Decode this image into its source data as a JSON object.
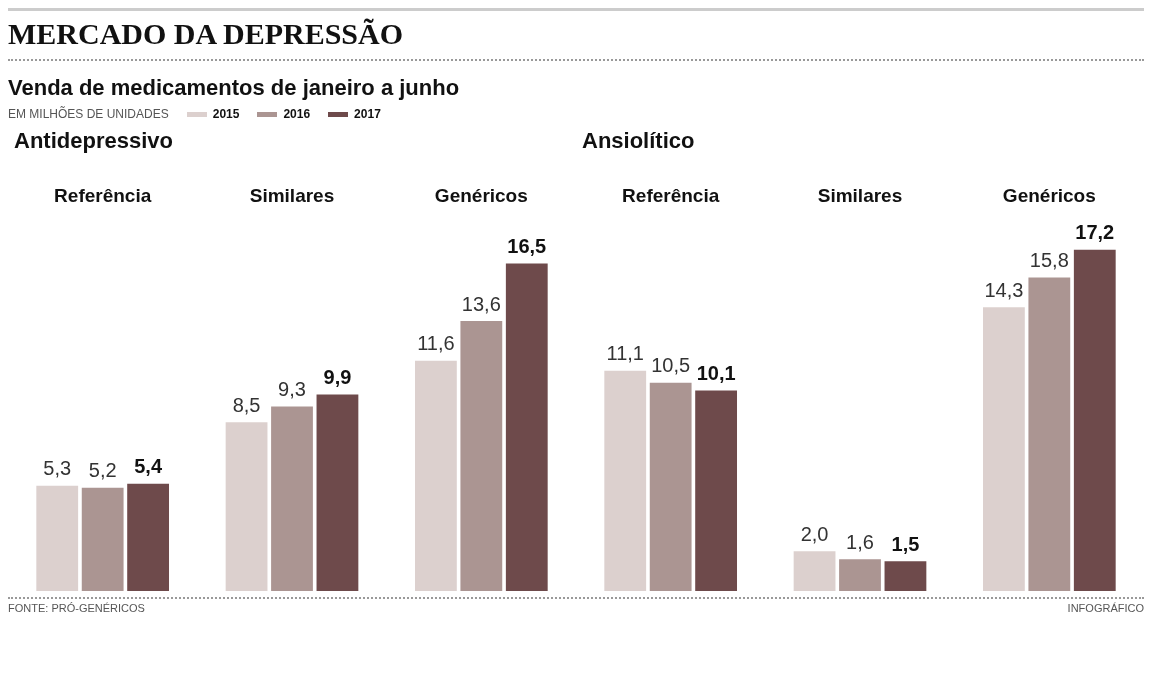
{
  "chart_data": {
    "type": "bar",
    "title": "MERCADO DA DEPRESSÃO",
    "subtitle": "Venda de medicamentos de janeiro a junho",
    "categories": [
      "Referência",
      "Similares",
      "Genéricos",
      "Referência",
      "Similares",
      "Genéricos"
    ],
    "series": [
      {
        "name": "2015",
        "color": "#dcd0ce",
        "values": [
          5.3,
          8.5,
          11.6,
          11.1,
          2.0,
          14.3
        ],
        "value_labels": [
          "5,3",
          "8,5",
          "11,6",
          "11,1",
          "2,0",
          "14,3"
        ]
      },
      {
        "name": "2016",
        "color": "#ab9592",
        "values": [
          5.2,
          9.3,
          13.6,
          10.5,
          1.6,
          15.8
        ],
        "value_labels": [
          "5,2",
          "9,3",
          "13,6",
          "10,5",
          "1,6",
          "15,8"
        ]
      },
      {
        "name": "2017",
        "color": "#6e4a4b",
        "values": [
          5.4,
          9.9,
          16.5,
          10.1,
          1.5,
          17.2
        ],
        "value_labels": [
          "5,4",
          "9,9",
          "16,5",
          "10,1",
          "1,5",
          "17,2"
        ]
      }
    ],
    "legend": "top left",
    "grid": false,
    "annotations": [
      "EM MILHÕES DE UNIDADES",
      "Antidepressivo",
      "Ansiolítico",
      "FONTE: PRÓ-GENÉRICOS",
      "INFOGRÁFICO"
    ]
  }
}
